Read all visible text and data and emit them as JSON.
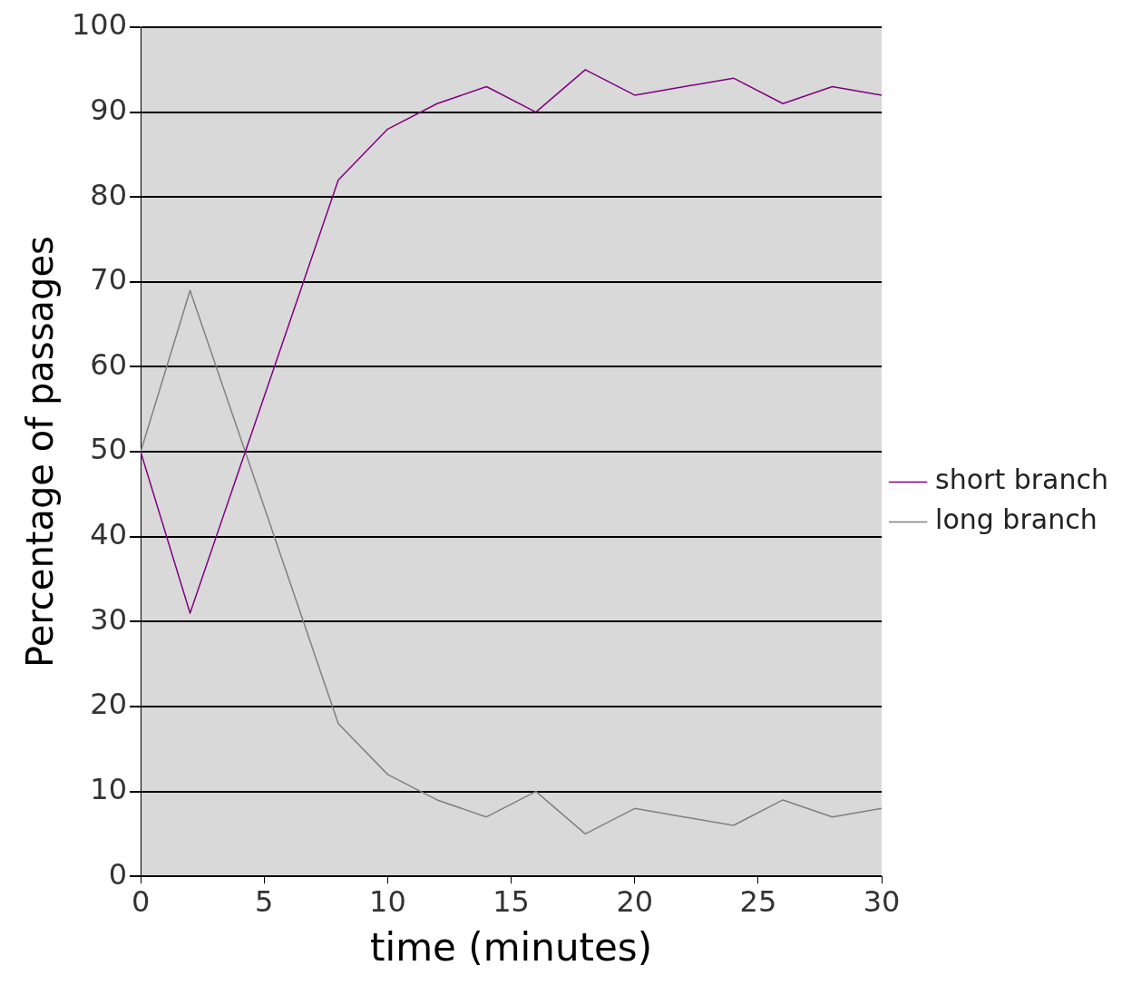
{
  "chart_data": {
    "type": "line",
    "xlabel": "time (minutes)",
    "ylabel": "Percentage of passages",
    "x": [
      0,
      2,
      4,
      6,
      8,
      10,
      12,
      14,
      16,
      18,
      20,
      22,
      24,
      26,
      28,
      30
    ],
    "series": [
      {
        "name": "short branch",
        "color": "#800080",
        "values": [
          50,
          31,
          48,
          65,
          82,
          88,
          91,
          93,
          90,
          95,
          92,
          93,
          94,
          91,
          93,
          92
        ]
      },
      {
        "name": "long branch",
        "color": "#808080",
        "values": [
          50,
          69,
          52,
          35,
          18,
          12,
          9,
          7,
          10,
          5,
          8,
          7,
          6,
          9,
          7,
          8
        ]
      }
    ],
    "xlim": [
      0,
      30
    ],
    "xticks": [
      0,
      5,
      10,
      15,
      20,
      25,
      30
    ],
    "ylim": [
      0,
      100
    ],
    "yticks": [
      0,
      10,
      20,
      30,
      40,
      50,
      60,
      70,
      80,
      90,
      100
    ],
    "grid": "y",
    "legend": "right",
    "marker": "none",
    "line_style": "solid"
  }
}
